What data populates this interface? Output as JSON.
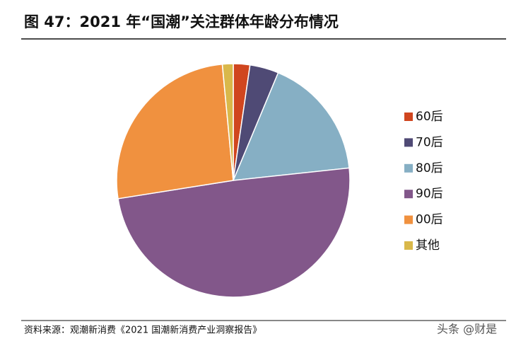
{
  "chart_data": {
    "type": "pie",
    "title": "图 47：2021 年“国潮”关注群体年龄分布情况",
    "categories": [
      "60后",
      "70后",
      "80后",
      "90后",
      "00后",
      "其他"
    ],
    "values": [
      2.3,
      4,
      17,
      49.2,
      26,
      1.5
    ],
    "colors": [
      "#d0461f",
      "#4f4a75",
      "#86afc4",
      "#82578a",
      "#f0913f",
      "#d9b84a"
    ],
    "legend": "right",
    "source": "资料来源：观潮新消费《2021 国潮新消费产业洞察报告》"
  },
  "watermark": "头条 @财是"
}
